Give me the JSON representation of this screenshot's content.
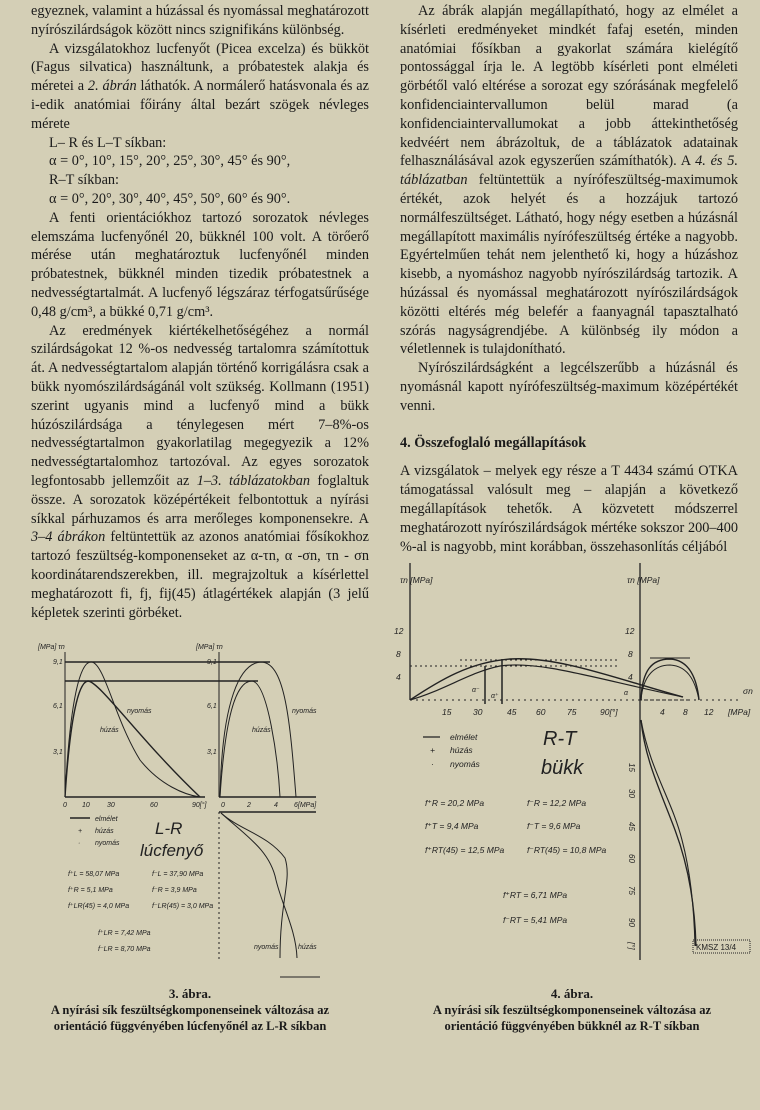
{
  "left_column": {
    "p1": "egyeznek, valamint a húzással és nyomással meghatározott nyírószilárdságok között nincs szignifikáns különbség.",
    "p2_a": "A vizsgálatokhoz lucfenyőt (Picea excelza) és bükköt (Fagus silvatica) használtunk, a próbatestek alakja és méretei a ",
    "p2_ref": "2. ábrán",
    "p2_b": " láthatók. A normálerő hatásvonala és az i-edik anatómiai főirány által bezárt szögek névleges mérete",
    "lr_lt_label": "L– R és L–T síkban:",
    "lr_lt_values": "α = 0°, 10°, 15°, 20°, 25°, 30°, 45° és 90°,",
    "rt_label": "R–T síkban:",
    "rt_values": "α = 0°, 20°, 30°, 40°, 45°, 50°, 60° és 90°.",
    "p3": "A fenti orientációkhoz tartozó sorozatok névleges elemszáma lucfenyőnél 20, bükknél 100 volt. A törőerő mérése után meghatároztuk lucfenyőnél minden próbatestnek, bükknél minden tizedik próbatestnek a nedvességtartalmát. A lucfenyő légszáraz térfogatsűrűsége 0,48 g/cm³, a bükké 0,71 g/cm³.",
    "p4_a": "Az eredmények kiértékelhetőségéhez a normál szilárdságokat 12 %-os nedvesség tartalomra számítottuk át. A nedvességtartalom alapján történő korrigálásra csak a bükk nyomószilárdságánál volt szükség. Kollmann (1951) szerint ugyanis mind a lucfenyő mind a bükk húzószilárdsága a ténylegesen mért 7–8%-os nedvességtartalmon gyakorlatilag megegyezik a 12% nedvességtartalomhoz tartozóval. Az egyes sorozatok legfontosabb jellemzőit az ",
    "p4_ref1": "1–3. táblázatokban",
    "p4_b": " foglaltuk össze. A sorozatok középértékeit felbontottuk a nyírási síkkal párhuzamos és arra merőleges komponensekre. A ",
    "p4_ref2": "3–4 ábrákon",
    "p4_c": " feltüntettük az azonos anatómiai fősíkokhoz tartozó feszültség-komponenseket az α-τn, α -σn, τn - σn koordinátarendszerekben, ill. megrajzoltuk a kísérlettel meghatározott fi, fj, fij(45) átlagértékek alapján (3 jelű képletek szerinti görbéket."
  },
  "right_column": {
    "p1_a": "Az ábrák alapján megállapítható, hogy az elmélet a kísérleti eredményeket mindkét fafaj esetén, minden anatómiai fősíkban a gyakorlat számára kielégítő pontossággal írja le. A legtöbb kísérleti pont elméleti görbétől való eltérése a sorozat egy szórásának megfelelő konfidenciaintervallumon belül marad (a konfidenciaintervallumokat a jobb áttekinthetőség kedvéért nem ábrázoltuk, de a táblázatok adatainak felhasználásával azok egyszerűen számíthatók). A ",
    "p1_ref": "4. és 5. táblázatban",
    "p1_b": " feltüntettük a nyírófeszültség-maximumok értékét, azok helyét és a hozzájuk tartozó normálfeszültséget. Látható, hogy négy esetben a húzásnál megállapított maximális nyírófeszültség értéke a nagyobb. Egyértelműen tehát nem jelenthető ki, hogy a húzáshoz kisebb, a nyomáshoz nagyobb nyírószilárdság tartozik. A húzással és nyomással meghatározott nyírószilárdságok közötti eltérés még belefér a faanyagnál tapasztalható szórás nagyságrendjébe. A különbség ily módon a véletlennek is tulajdonítható.",
    "p2": "Nyírószilárdságként a legcélszerűbb a húzásnál és nyomásnál kapott nyírófeszültség-maximum középértékét venni.",
    "section_heading": "4.  Összefoglaló megállapítások",
    "p3": "A vizsgálatok – melyek egy része a T 4434 számú OTKA támogatással valósult meg – alapján a következő megállapítások tehetők. A közvetett módszerrel meghatározott nyírószilárdságok mértéke sokszor 200–400 %-al is nagyobb, mint korábban, összehasonlítás céljából"
  },
  "figure3": {
    "number": "3. ábra.",
    "caption_line1": "A nyírási sík feszültségkomponenseinek változása az",
    "caption_line2": "orientáció függvényében lúcfenyőnél az L-R síkban",
    "axis_unit_left": "[MPa] τn",
    "axis_unit_right": "[MPa] τn",
    "y_ticks": [
      "9,1",
      "6,1",
      "3,1"
    ],
    "x_ticks_left": [
      "0",
      "10",
      "30",
      "60",
      "90[°]"
    ],
    "x_ticks_right": [
      "0",
      "2",
      "4",
      "6[MPa]"
    ],
    "curve_label_nyomas": "nyomás",
    "curve_label_huzas": "húzás",
    "legend": [
      "elmélet",
      "húzás",
      "nyomás"
    ],
    "plane": "L-R",
    "species": "lúcfenyő",
    "values": [
      "f⁺L = 58,07 MPa",
      "f⁻L = 37,90 MPa",
      "f⁺R = 5,1 MPa",
      "f⁻R = 3,9 MPa",
      "f⁺LR(45) = 4,0 MPa",
      "f⁻LR(45) = 3,0 MPa",
      "f⁺LR = 7,42 MPa",
      "f⁻LR = 8,70 MPa"
    ]
  },
  "figure4": {
    "number": "4. ábra.",
    "caption_line1": "A nyírási sík feszültségkomponenseinek változása az",
    "caption_line2": "orientáció függvényében bükknél az R-T síkban",
    "axis_label_left": "τn [MPa]",
    "axis_label_right": "τn [MPa]",
    "y_ticks": [
      "12",
      "8",
      "4"
    ],
    "x_ticks_left": [
      "15",
      "30",
      "45",
      "60",
      "75",
      "90[°]"
    ],
    "x_ticks_right": [
      "4",
      "8",
      "12",
      "[MPa]"
    ],
    "x_axis_right": "σn",
    "lower_ticks": [
      "15",
      "30",
      "45",
      "60",
      "75",
      "90",
      "[°]"
    ],
    "alpha_marks": [
      "α⁻",
      "α⁺",
      "α"
    ],
    "legend": [
      "elmélet",
      "húzás",
      "nyomás"
    ],
    "plane": "R-T",
    "species": "bükk",
    "values": [
      "f⁺R = 20,2 MPa",
      "f⁻R = 12,2 MPa",
      "f⁺T = 9,4 MPa",
      "f⁻T = 9,6 MPa",
      "f⁺RT(45) = 12,5 MPa",
      "f⁻RT(45) = 10,8 MPa"
    ],
    "values_rt": [
      "f⁺RT = 6,71 MPa",
      "f⁻RT = 5,41 MPa"
    ],
    "stamp": "KMSZ 13/4"
  }
}
